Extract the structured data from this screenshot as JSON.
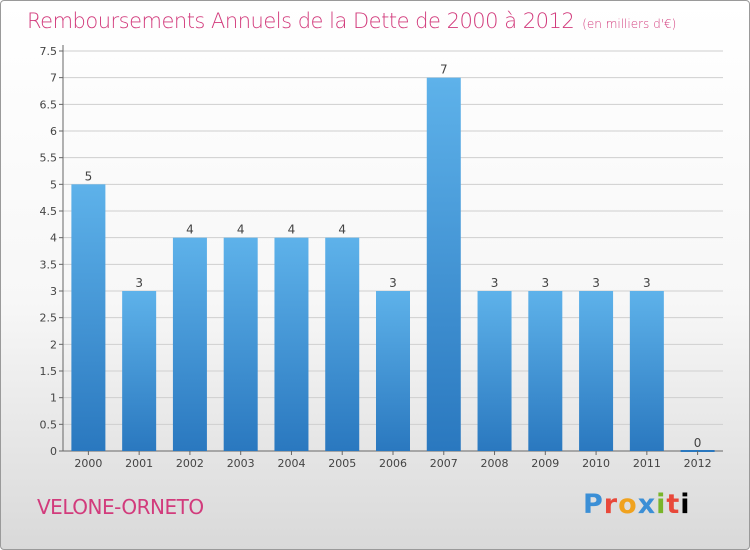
{
  "title": "Remboursements Annuels de la Dette de 2000 à 2012",
  "subtitle": "(en milliers d'€)",
  "commune": "VELONE-ORNETO",
  "logo_text": "Proxiti",
  "colors": {
    "title": "#d23b7c",
    "bar_top": "#5eb2ea",
    "bar_bottom": "#2a78bf",
    "grid": "#cfcfcf"
  },
  "chart_data": {
    "type": "bar",
    "categories": [
      "2000",
      "2001",
      "2002",
      "2003",
      "2004",
      "2005",
      "2006",
      "2007",
      "2008",
      "2009",
      "2010",
      "2011",
      "2012"
    ],
    "values": [
      5,
      3,
      4,
      4,
      4,
      4,
      3,
      7,
      3,
      3,
      3,
      3,
      0
    ],
    "data_labels": [
      "5",
      "3",
      "4",
      "4",
      "4",
      "4",
      "3",
      "7",
      "3",
      "3",
      "3",
      "3",
      "0"
    ],
    "yticks": [
      "0",
      "0.5",
      "1",
      "1.5",
      "2",
      "2.5",
      "3",
      "3.5",
      "4",
      "4.5",
      "5",
      "5.5",
      "6",
      "6.5",
      "7",
      "7.5"
    ],
    "ylim": [
      0,
      7.5
    ],
    "grid": true
  }
}
